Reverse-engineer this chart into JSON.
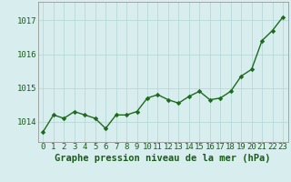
{
  "x": [
    0,
    1,
    2,
    3,
    4,
    5,
    6,
    7,
    8,
    9,
    10,
    11,
    12,
    13,
    14,
    15,
    16,
    17,
    18,
    19,
    20,
    21,
    22,
    23
  ],
  "y": [
    1013.7,
    1014.2,
    1014.1,
    1014.3,
    1014.2,
    1014.1,
    1013.8,
    1014.2,
    1014.2,
    1014.3,
    1014.7,
    1014.8,
    1014.65,
    1014.55,
    1014.75,
    1014.9,
    1014.65,
    1014.7,
    1014.9,
    1015.35,
    1015.55,
    1016.4,
    1016.7,
    1017.1
  ],
  "line_color": "#1e6b1e",
  "marker_color": "#1e6b1e",
  "bg_color": "#d8eeee",
  "grid_color": "#b8d8d8",
  "title": "Graphe pression niveau de la mer (hPa)",
  "ylim_min": 1013.4,
  "ylim_max": 1017.55,
  "yticks": [
    1014,
    1015,
    1016,
    1017
  ],
  "xticks": [
    0,
    1,
    2,
    3,
    4,
    5,
    6,
    7,
    8,
    9,
    10,
    11,
    12,
    13,
    14,
    15,
    16,
    17,
    18,
    19,
    20,
    21,
    22,
    23
  ],
  "title_fontsize": 7.5,
  "tick_fontsize": 6.5,
  "line_width": 1.0,
  "marker_size": 2.8
}
